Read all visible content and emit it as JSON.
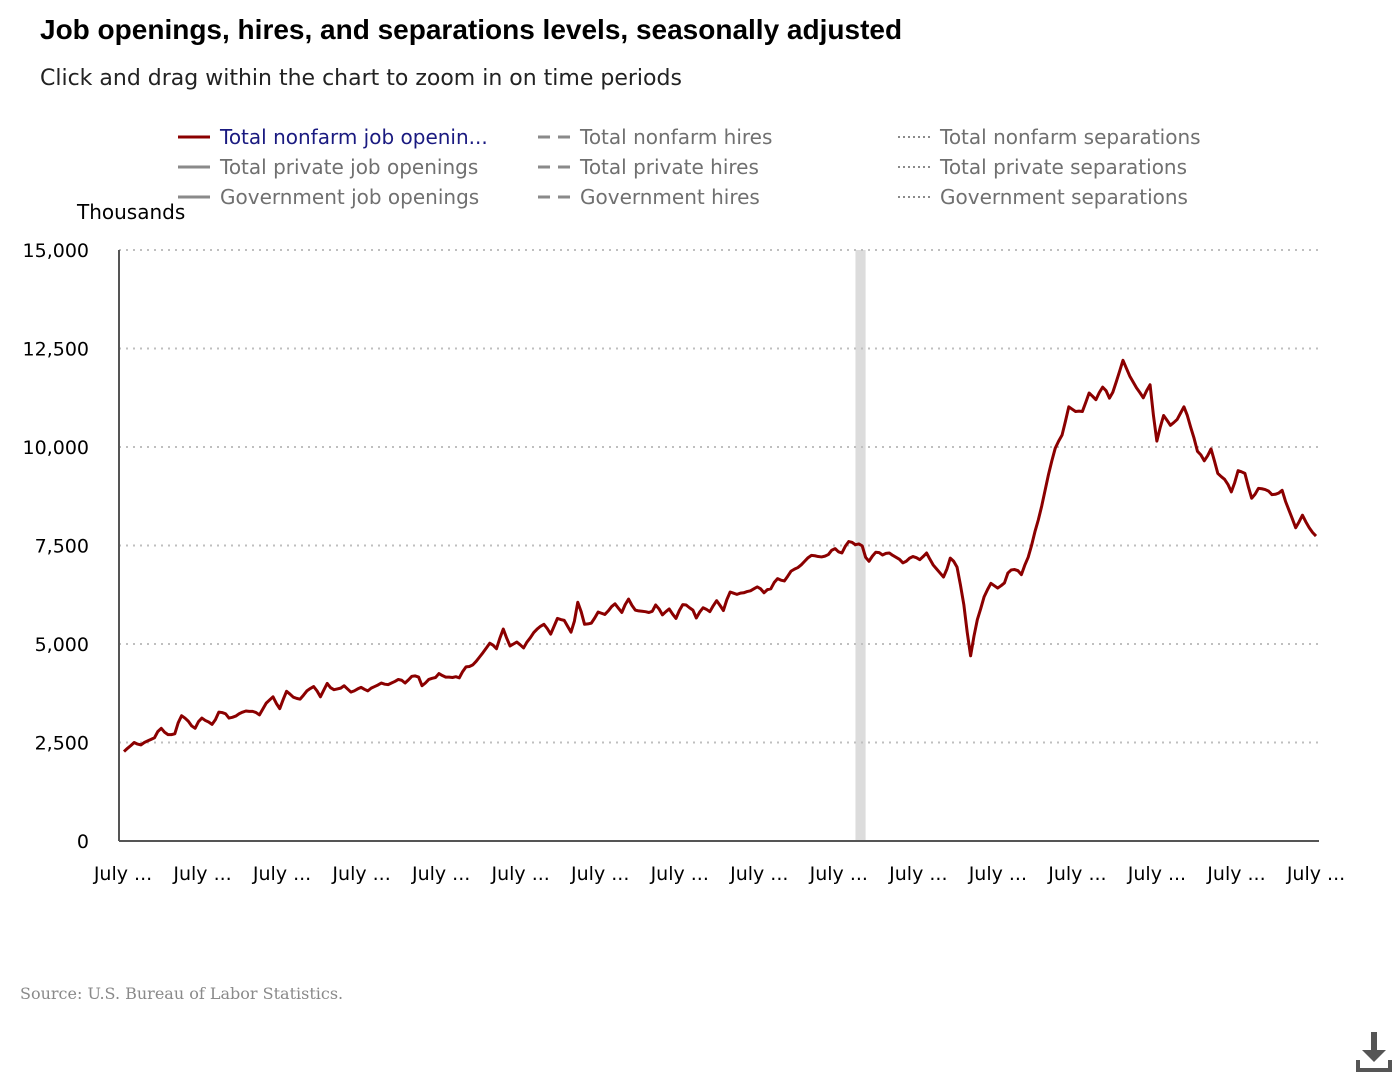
{
  "title": "Job openings, hires, and separations levels, seasonally adjusted",
  "subtitle": "Click and drag within the chart to zoom in on time periods",
  "source": "Source: U.S. Bureau of Labor Statistics.",
  "download_icon": "download-icon",
  "colors": {
    "openings_active": "#8b0000",
    "inactive": "#8a8a8a",
    "recession": "#dcdcdc",
    "grid": "#bfbfbf",
    "axis": "#555555"
  },
  "legend": [
    {
      "label": "Total nonfarm job openin...",
      "style": "solid",
      "active": true
    },
    {
      "label": "Total nonfarm hires",
      "style": "dashed",
      "active": false
    },
    {
      "label": "Total nonfarm separations",
      "style": "dotted",
      "active": false
    },
    {
      "label": "Total private job openings",
      "style": "solid",
      "active": false
    },
    {
      "label": "Total private hires",
      "style": "dashed",
      "active": false
    },
    {
      "label": "Total private separations",
      "style": "dotted",
      "active": false
    },
    {
      "label": "Government job openings",
      "style": "solid",
      "active": false
    },
    {
      "label": "Government hires",
      "style": "dashed",
      "active": false
    },
    {
      "label": "Government separations",
      "style": "dotted",
      "active": false
    }
  ],
  "chart_data": {
    "type": "line",
    "ylabel": "Thousands",
    "ylim": [
      0,
      15000
    ],
    "yticks": [
      0,
      2500,
      5000,
      7500,
      10000,
      12500,
      15000
    ],
    "ytick_labels": [
      "0",
      "2,500",
      "5,000",
      "7,500",
      "10,000",
      "12,500",
      "15,000"
    ],
    "xtick_labels": [
      "July ...",
      "July ...",
      "July ...",
      "July ...",
      "July ...",
      "July ...",
      "July ...",
      "July ...",
      "July ...",
      "July ...",
      "July ...",
      "July ...",
      "July ...",
      "July ...",
      "July ...",
      "July ..."
    ],
    "grid": "horizontal dotted",
    "recession_band": {
      "start_index": 216,
      "end_index": 219
    },
    "series": [
      {
        "name": "Total nonfarm job openin...",
        "values": [
          2270,
          2350,
          2420,
          2500,
          2460,
          2440,
          2500,
          2540,
          2580,
          2620,
          2780,
          2860,
          2760,
          2700,
          2700,
          2720,
          3000,
          3180,
          3120,
          3040,
          2920,
          2860,
          3030,
          3120,
          3060,
          3020,
          2960,
          3080,
          3270,
          3260,
          3230,
          3120,
          3140,
          3170,
          3230,
          3270,
          3300,
          3290,
          3290,
          3260,
          3200,
          3350,
          3500,
          3580,
          3660,
          3490,
          3360,
          3590,
          3800,
          3730,
          3650,
          3620,
          3600,
          3700,
          3810,
          3870,
          3920,
          3810,
          3660,
          3830,
          4000,
          3890,
          3840,
          3860,
          3880,
          3940,
          3860,
          3780,
          3810,
          3860,
          3900,
          3850,
          3810,
          3880,
          3920,
          3960,
          4010,
          3980,
          3970,
          4010,
          4050,
          4100,
          4080,
          4010,
          4090,
          4180,
          4190,
          4160,
          3940,
          4010,
          4100,
          4130,
          4150,
          4250,
          4200,
          4160,
          4160,
          4150,
          4170,
          4140,
          4300,
          4420,
          4430,
          4470,
          4560,
          4670,
          4780,
          4900,
          5020,
          4970,
          4880,
          5150,
          5380,
          5150,
          4950,
          5000,
          5050,
          4980,
          4900,
          5050,
          5160,
          5290,
          5380,
          5450,
          5500,
          5390,
          5250,
          5450,
          5650,
          5620,
          5600,
          5450,
          5300,
          5580,
          6060,
          5820,
          5500,
          5510,
          5530,
          5660,
          5810,
          5780,
          5750,
          5840,
          5950,
          6020,
          5910,
          5800,
          6000,
          6140,
          5980,
          5860,
          5840,
          5830,
          5820,
          5800,
          5830,
          5990,
          5890,
          5740,
          5820,
          5890,
          5760,
          5650,
          5850,
          6000,
          5990,
          5920,
          5860,
          5660,
          5810,
          5920,
          5880,
          5820,
          5970,
          6100,
          5980,
          5850,
          6120,
          6320,
          6290,
          6260,
          6290,
          6300,
          6330,
          6350,
          6400,
          6450,
          6400,
          6300,
          6380,
          6400,
          6560,
          6660,
          6620,
          6600,
          6720,
          6850,
          6900,
          6940,
          7010,
          7100,
          7190,
          7250,
          7240,
          7220,
          7210,
          7230,
          7270,
          7380,
          7420,
          7340,
          7310,
          7480,
          7600,
          7580,
          7520,
          7540,
          7490,
          7200,
          7100,
          7230,
          7330,
          7320,
          7260,
          7300,
          7310,
          7250,
          7200,
          7150,
          7060,
          7100,
          7180,
          7220,
          7190,
          7140,
          7220,
          7310,
          7150,
          7000,
          6900,
          6800,
          6700,
          6900,
          7180,
          7100,
          6950,
          6500,
          6000,
          5300,
          4700,
          5200,
          5620,
          5900,
          6200,
          6380,
          6540,
          6480,
          6420,
          6480,
          6550,
          6800,
          6880,
          6890,
          6860,
          6760,
          7000,
          7200,
          7500,
          7850,
          8150,
          8500,
          8900,
          9300,
          9650,
          9970,
          10150,
          10300,
          10650,
          11020,
          10960,
          10900,
          10910,
          10900,
          11130,
          11370,
          11290,
          11200,
          11380,
          11520,
          11430,
          11240,
          11390,
          11650,
          11920,
          12200,
          12000,
          11800,
          11650,
          11500,
          11380,
          11250,
          11430,
          11580,
          10800,
          10150,
          10500,
          10800,
          10680,
          10550,
          10620,
          10700,
          10860,
          11020,
          10800,
          10500,
          10220,
          9890,
          9800,
          9650,
          9780,
          9950,
          9650,
          9330,
          9250,
          9180,
          9050,
          8860,
          9100,
          9400,
          9370,
          9330,
          9000,
          8700,
          8800,
          8950,
          8940,
          8920,
          8880,
          8790,
          8800,
          8830,
          8900,
          8620,
          8400,
          8180,
          7950,
          8100,
          8270,
          8100,
          7950,
          7830,
          7740
        ]
      }
    ]
  }
}
